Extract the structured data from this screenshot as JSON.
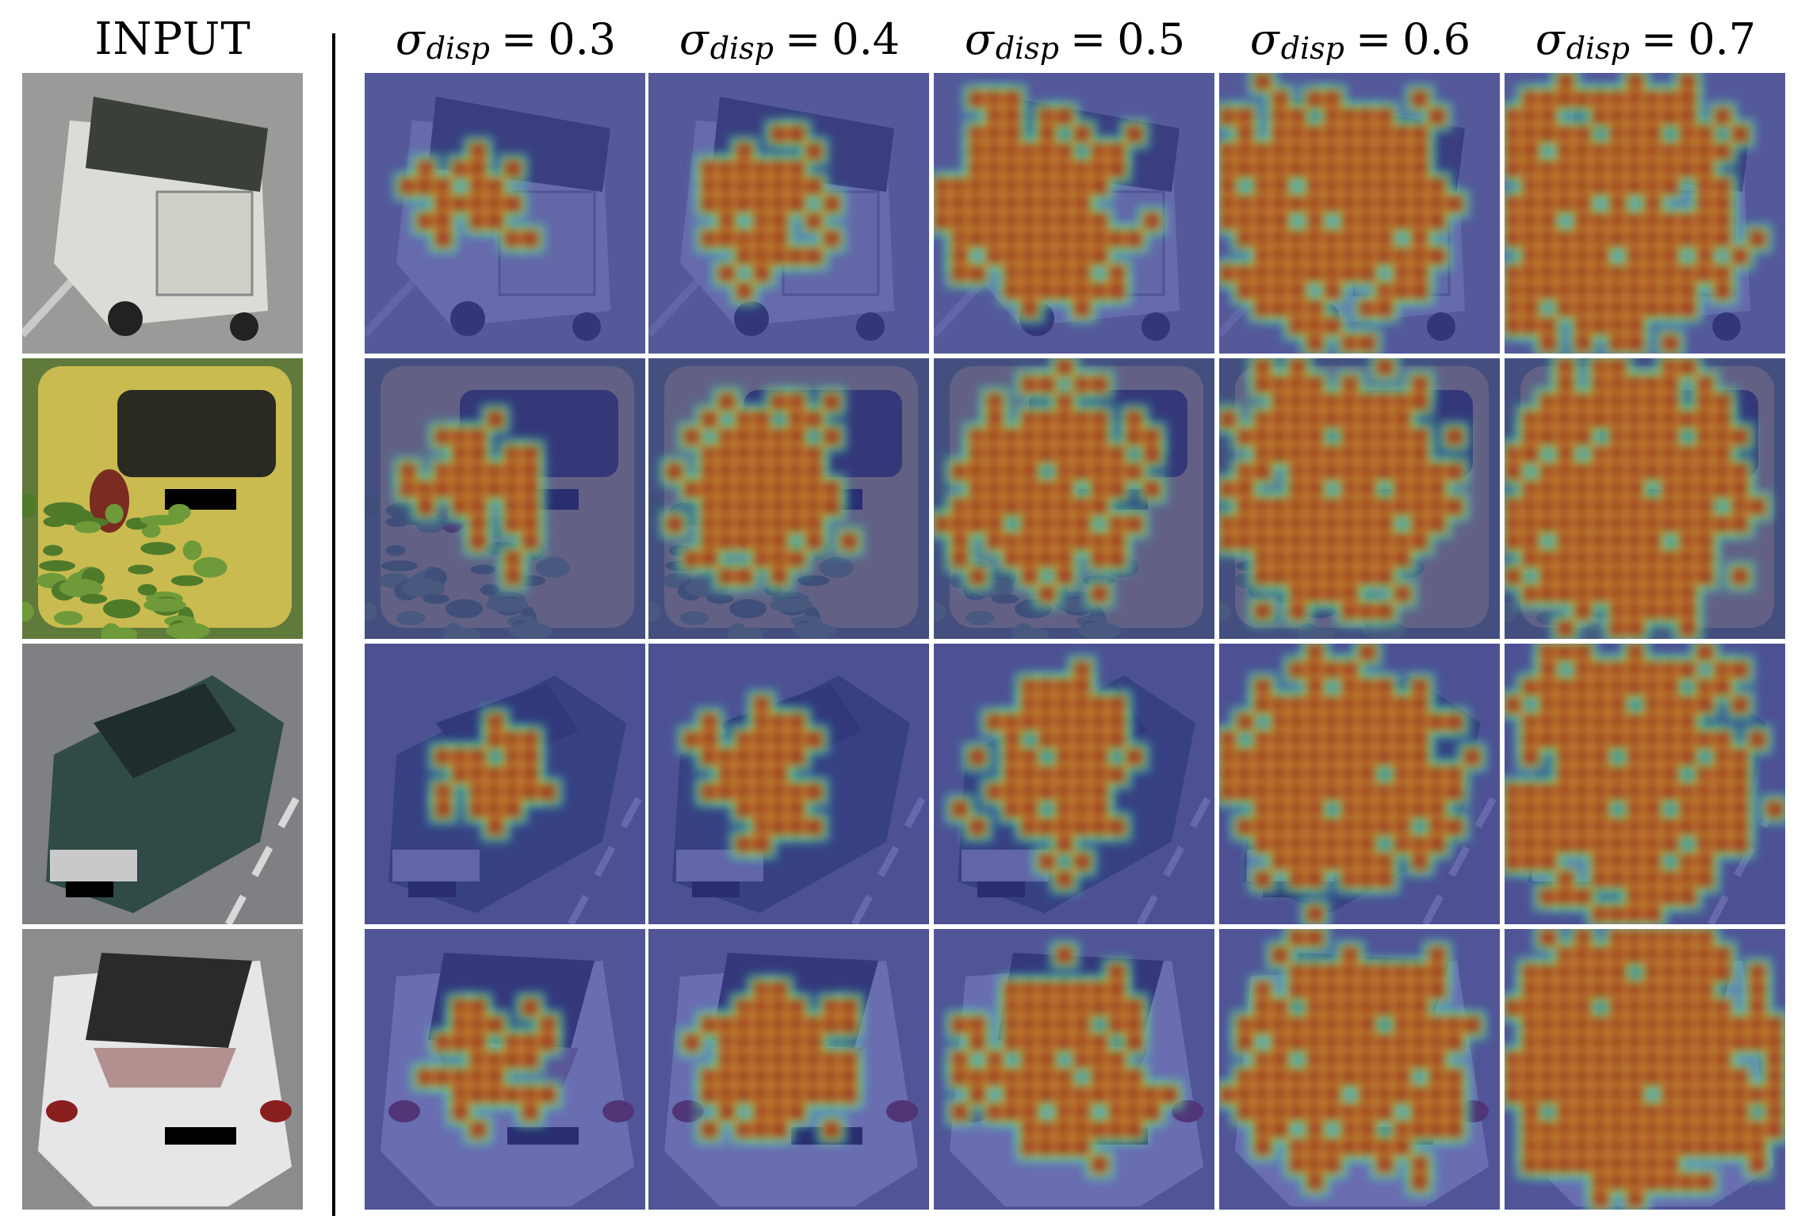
{
  "header": {
    "input_label": "INPUT",
    "sigma_symbol": "σ",
    "sigma_subscript": "disp",
    "equals": "="
  },
  "columns": [
    {
      "key": "input",
      "label": "INPUT"
    },
    {
      "key": "s03",
      "value": "0.3"
    },
    {
      "key": "s04",
      "value": "0.4"
    },
    {
      "key": "s05",
      "value": "0.5"
    },
    {
      "key": "s06",
      "value": "0.6"
    },
    {
      "key": "s07",
      "value": "0.7"
    }
  ],
  "rows": [
    {
      "subject": "white-truck-with-dark-tarp",
      "body_color": "#dcdcd6",
      "top_color": "#3a3f3a",
      "bg_color": "#9a9a98",
      "coverage": [
        0.35,
        0.45,
        0.6,
        0.72,
        0.82
      ]
    },
    {
      "subject": "yellow-hatchback-rear",
      "body_color": "#c9bb4f",
      "top_color": "#2a2a22",
      "bg_color": "#5f7a3a",
      "coverage": [
        0.45,
        0.55,
        0.62,
        0.7,
        0.78
      ]
    },
    {
      "subject": "dark-green-pickup",
      "body_color": "#2f4a47",
      "top_color": "#1f2d2c",
      "bg_color": "#7f8083",
      "coverage": [
        0.35,
        0.45,
        0.55,
        0.68,
        0.8
      ]
    },
    {
      "subject": "white-sedan-rear",
      "body_color": "#e6e6e8",
      "top_color": "#2a2a2c",
      "bg_color": "#8c8c8e",
      "coverage": [
        0.42,
        0.5,
        0.6,
        0.7,
        0.8
      ]
    }
  ],
  "colors": {
    "heat_low": "#3a3f9a",
    "heat_high": "#9b2b22",
    "heat_edge_mid": "#2fd1c5",
    "heat_edge_warm": "#f0d13a",
    "divider": "#000000"
  },
  "icons": {
    "input-image": "car-photo",
    "attention-map": "heatmap-overlay"
  }
}
